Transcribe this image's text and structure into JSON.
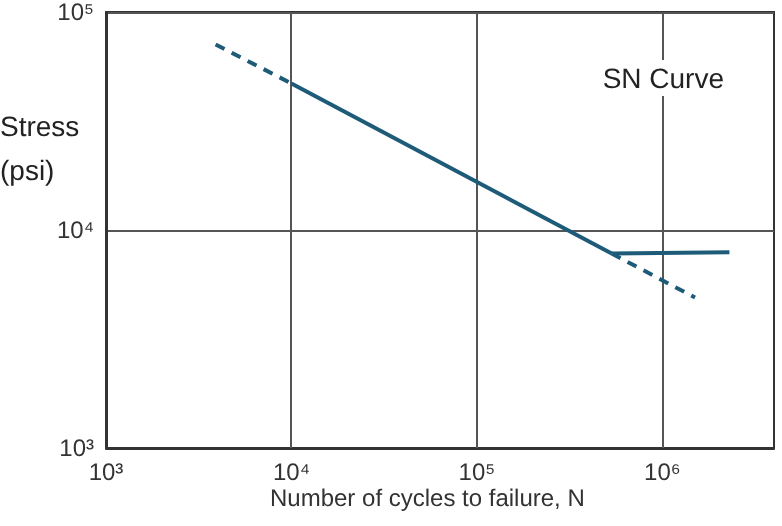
{
  "chart_data": {
    "type": "line",
    "title": "SN Curve",
    "xlabel": "Number of cycles to failure, N",
    "ylabel": "Stress (psi)",
    "log": "xy",
    "grid": true,
    "marker": "none",
    "xlim": [
      1000,
      4000000
    ],
    "ylim": [
      1000,
      100000
    ],
    "xticks": [
      {
        "value": 1000,
        "label": "10³"
      },
      {
        "value": 10000,
        "label": "10⁴"
      },
      {
        "value": 100000,
        "label": "10⁵"
      },
      {
        "value": 1000000,
        "label": "10⁶"
      }
    ],
    "yticks": [
      {
        "value": 1000,
        "label": "10³"
      },
      {
        "value": 10000,
        "label": "10⁴"
      },
      {
        "value": 100000,
        "label": "10⁵"
      }
    ],
    "series": [
      {
        "color": "#1d5b79",
        "line_style": "dashed",
        "x": [
          3900,
          10000
        ],
        "values": [
          71000,
          47000
        ]
      },
      {
        "color": "#1d5b79",
        "line_style": "solid",
        "x": [
          10000,
          533000
        ],
        "values": [
          47000,
          7800
        ]
      },
      {
        "color": "#1d5b79",
        "line_style": "solid",
        "x": [
          533000,
          2300000
        ],
        "values": [
          7800,
          7900
        ]
      },
      {
        "color": "#1d5b79",
        "line_style": "dashed",
        "x": [
          533000,
          1500000
        ],
        "values": [
          7800,
          4900
        ]
      }
    ]
  }
}
